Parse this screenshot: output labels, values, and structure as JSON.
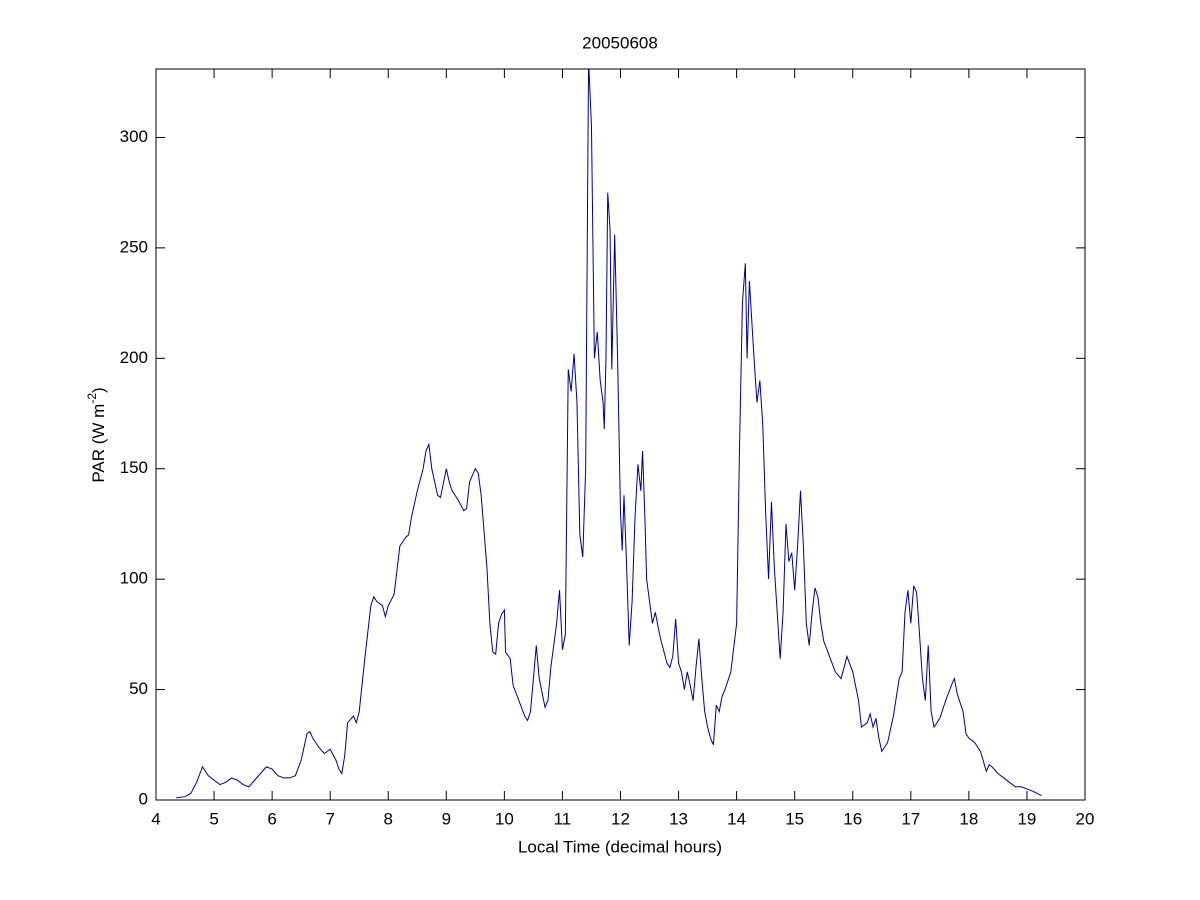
{
  "chart_data": {
    "type": "line",
    "title": "20050608",
    "xlabel": "Local Time (decimal hours)",
    "ylabel": [
      "PAR (W m",
      "-2",
      ")"
    ],
    "color": "#00008b",
    "xlim": [
      4,
      20
    ],
    "xticks": [
      4,
      5,
      6,
      7,
      8,
      9,
      10,
      11,
      12,
      13,
      14,
      15,
      16,
      17,
      18,
      19,
      20
    ],
    "ylim": [
      0,
      331
    ],
    "yticks": [
      0,
      50,
      100,
      150,
      200,
      250,
      300
    ],
    "x": [
      4.35,
      4.5,
      4.6,
      4.7,
      4.8,
      4.9,
      5.0,
      5.1,
      5.2,
      5.3,
      5.4,
      5.5,
      5.6,
      5.7,
      5.8,
      5.9,
      6.0,
      6.1,
      6.2,
      6.3,
      6.4,
      6.5,
      6.6,
      6.65,
      6.7,
      6.8,
      6.9,
      7.0,
      7.1,
      7.15,
      7.2,
      7.25,
      7.3,
      7.4,
      7.45,
      7.5,
      7.6,
      7.7,
      7.75,
      7.8,
      7.9,
      7.95,
      8.0,
      8.1,
      8.2,
      8.3,
      8.35,
      8.4,
      8.5,
      8.6,
      8.65,
      8.7,
      8.75,
      8.85,
      8.9,
      9.0,
      9.05,
      9.1,
      9.2,
      9.3,
      9.35,
      9.4,
      9.5,
      9.55,
      9.6,
      9.7,
      9.75,
      9.8,
      9.85,
      9.9,
      9.95,
      10.0,
      10.02,
      10.1,
      10.15,
      10.25,
      10.35,
      10.4,
      10.45,
      10.5,
      10.55,
      10.6,
      10.7,
      10.75,
      10.8,
      10.85,
      10.9,
      10.95,
      11.0,
      11.05,
      11.1,
      11.15,
      11.2,
      11.25,
      11.3,
      11.35,
      11.4,
      11.45,
      11.5,
      11.55,
      11.6,
      11.65,
      11.7,
      11.72,
      11.75,
      11.78,
      11.82,
      11.85,
      11.9,
      11.95,
      12.0,
      12.03,
      12.06,
      12.1,
      12.15,
      12.2,
      12.25,
      12.3,
      12.35,
      12.38,
      12.42,
      12.45,
      12.5,
      12.55,
      12.6,
      12.65,
      12.7,
      12.8,
      12.85,
      12.9,
      12.95,
      13.0,
      13.05,
      13.1,
      13.15,
      13.2,
      13.25,
      13.3,
      13.35,
      13.4,
      13.45,
      13.5,
      13.55,
      13.6,
      13.65,
      13.7,
      13.75,
      13.8,
      13.9,
      14.0,
      14.05,
      14.1,
      14.15,
      14.18,
      14.22,
      14.3,
      14.35,
      14.4,
      14.45,
      14.5,
      14.55,
      14.6,
      14.65,
      14.75,
      14.8,
      14.85,
      14.9,
      14.95,
      15.0,
      15.05,
      15.1,
      15.15,
      15.2,
      15.25,
      15.3,
      15.35,
      15.4,
      15.45,
      15.5,
      15.6,
      15.7,
      15.8,
      15.9,
      16.0,
      16.1,
      16.15,
      16.25,
      16.3,
      16.35,
      16.4,
      16.45,
      16.5,
      16.55,
      16.6,
      16.7,
      16.8,
      16.85,
      16.9,
      16.95,
      17.0,
      17.05,
      17.1,
      17.15,
      17.2,
      17.25,
      17.3,
      17.35,
      17.4,
      17.5,
      17.6,
      17.7,
      17.75,
      17.8,
      17.9,
      17.95,
      18.0,
      18.1,
      18.2,
      18.3,
      18.35,
      18.4,
      18.5,
      18.6,
      18.7,
      18.8,
      18.9,
      19.0,
      19.1,
      19.25
    ],
    "values": [
      1,
      1.5,
      3,
      8,
      15,
      11,
      9,
      7,
      8,
      10,
      9,
      7,
      6,
      9,
      12,
      15,
      14,
      11,
      10,
      10,
      11,
      18,
      30,
      31,
      28,
      24,
      21,
      23,
      18,
      14,
      12,
      20,
      35,
      38,
      35,
      40,
      65,
      88,
      92,
      90,
      88,
      83,
      88,
      93,
      115,
      119,
      120,
      128,
      140,
      150,
      158,
      161,
      150,
      138,
      137,
      150,
      144,
      140,
      136,
      131,
      132,
      144,
      150,
      148,
      138,
      105,
      80,
      67,
      66,
      80,
      84,
      86,
      67,
      64,
      52,
      45,
      38,
      36,
      40,
      55,
      70,
      55,
      42,
      45,
      60,
      70,
      80,
      95,
      68,
      75,
      195,
      185,
      202,
      180,
      120,
      110,
      150,
      335,
      305,
      200,
      212,
      190,
      180,
      168,
      200,
      275,
      258,
      195,
      256,
      200,
      130,
      113,
      138,
      110,
      70,
      90,
      128,
      152,
      140,
      158,
      128,
      100,
      90,
      80,
      85,
      78,
      72,
      62,
      60,
      65,
      82,
      62,
      58,
      50,
      58,
      52,
      45,
      60,
      73,
      55,
      40,
      33,
      28,
      25,
      43,
      40,
      47,
      50,
      58,
      80,
      160,
      225,
      243,
      200,
      235,
      200,
      180,
      190,
      170,
      130,
      100,
      135,
      105,
      64,
      85,
      125,
      108,
      112,
      95,
      115,
      140,
      115,
      80,
      70,
      85,
      96,
      92,
      80,
      72,
      65,
      58,
      55,
      65,
      58,
      45,
      33,
      35,
      39,
      33,
      37,
      28,
      22,
      24,
      26,
      38,
      55,
      58,
      85,
      95,
      80,
      97,
      94,
      75,
      55,
      45,
      70,
      40,
      33,
      37,
      45,
      52,
      55,
      48,
      40,
      30,
      28,
      26,
      22,
      13,
      16,
      15,
      12,
      10,
      8,
      6,
      6,
      5,
      4,
      2
    ]
  }
}
